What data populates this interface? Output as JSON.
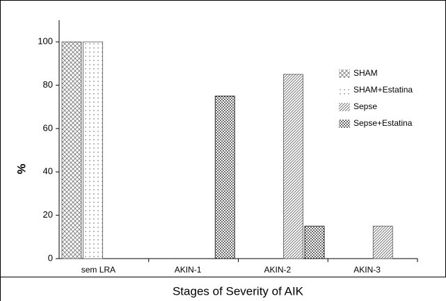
{
  "chart_data": {
    "type": "bar",
    "y_label": "%",
    "x_label": "Stages of Severity of AIK",
    "categories": [
      "sem LRA",
      "AKIN-1",
      "AKIN-2",
      "AKIN-3"
    ],
    "series": [
      {
        "name": "SHAM",
        "color": "#555555",
        "pattern": "crosshatch",
        "values": [
          100,
          0,
          0,
          0
        ]
      },
      {
        "name": "SHAM+Estatina",
        "color": "#555555",
        "pattern": "dots",
        "values": [
          100,
          0,
          0,
          0
        ]
      },
      {
        "name": "Sepse",
        "color": "#555555",
        "pattern": "diagonal",
        "values": [
          0,
          0,
          85,
          15
        ]
      },
      {
        "name": "Sepse+Estatina",
        "color": "#000000",
        "pattern": "dense-dots",
        "values": [
          0,
          75,
          15,
          0
        ]
      }
    ],
    "ylim": [
      0,
      110
    ],
    "yticks": [
      0,
      20,
      40,
      60,
      80,
      100
    ],
    "legend": "upper right"
  }
}
